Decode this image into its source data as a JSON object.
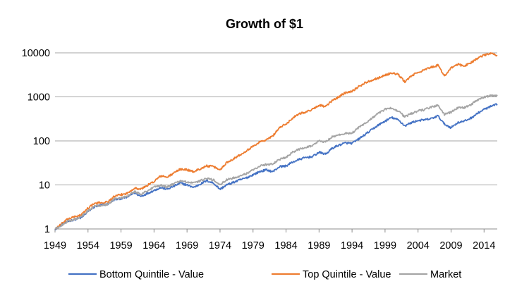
{
  "chart_data": {
    "type": "line",
    "title": "Growth of $1",
    "xlabel": "",
    "ylabel": "",
    "y_scale": "log",
    "ylim": [
      1,
      10000
    ],
    "xlim": [
      1949,
      2016
    ],
    "y_ticks": [
      1,
      10,
      100,
      1000,
      10000
    ],
    "y_tick_labels": [
      "1",
      "10",
      "100",
      "1000",
      "10000"
    ],
    "x_ticks": [
      1949,
      1954,
      1959,
      1964,
      1969,
      1974,
      1979,
      1984,
      1989,
      1994,
      1999,
      2004,
      2009,
      2014
    ],
    "x_tick_labels": [
      "1949",
      "1954",
      "1959",
      "1964",
      "1969",
      "1974",
      "1979",
      "1984",
      "1989",
      "1994",
      "1999",
      "2004",
      "2009",
      "2014"
    ],
    "grid": true,
    "legend_position": "bottom",
    "series": [
      {
        "name": "Bottom Quintile - Value",
        "color": "#4472C4",
        "points": [
          [
            1949,
            1
          ],
          [
            1951,
            1.5
          ],
          [
            1953,
            1.8
          ],
          [
            1954,
            2.5
          ],
          [
            1955,
            3.2
          ],
          [
            1957,
            3.7
          ],
          [
            1958,
            4.6
          ],
          [
            1960,
            5.3
          ],
          [
            1961,
            6.7
          ],
          [
            1962,
            5.5
          ],
          [
            1964,
            7.5
          ],
          [
            1965,
            8.7
          ],
          [
            1966,
            8
          ],
          [
            1968,
            11
          ],
          [
            1969,
            10
          ],
          [
            1970,
            8.8
          ],
          [
            1972,
            12.5
          ],
          [
            1973,
            11
          ],
          [
            1974,
            8
          ],
          [
            1975,
            10
          ],
          [
            1977,
            13
          ],
          [
            1978,
            14.5
          ],
          [
            1980,
            20
          ],
          [
            1981,
            22
          ],
          [
            1982,
            20
          ],
          [
            1983,
            26
          ],
          [
            1984,
            27
          ],
          [
            1985,
            33
          ],
          [
            1986,
            38
          ],
          [
            1987,
            42
          ],
          [
            1988,
            44
          ],
          [
            1989,
            55
          ],
          [
            1990,
            50
          ],
          [
            1991,
            68
          ],
          [
            1992,
            80
          ],
          [
            1993,
            90
          ],
          [
            1994,
            88
          ],
          [
            1995,
            110
          ],
          [
            1996,
            140
          ],
          [
            1997,
            180
          ],
          [
            1998,
            230
          ],
          [
            1999,
            280
          ],
          [
            2000,
            340
          ],
          [
            2001,
            300
          ],
          [
            2002,
            220
          ],
          [
            2003,
            260
          ],
          [
            2004,
            290
          ],
          [
            2005,
            300
          ],
          [
            2006,
            320
          ],
          [
            2007,
            370
          ],
          [
            2008,
            240
          ],
          [
            2009,
            200
          ],
          [
            2010,
            260
          ],
          [
            2011,
            280
          ],
          [
            2012,
            330
          ],
          [
            2013,
            420
          ],
          [
            2014,
            520
          ],
          [
            2015,
            600
          ],
          [
            2016,
            680
          ]
        ]
      },
      {
        "name": "Top Quintile - Value",
        "color": "#ED7D31",
        "points": [
          [
            1949,
            1
          ],
          [
            1951,
            1.7
          ],
          [
            1953,
            2.1
          ],
          [
            1954,
            3
          ],
          [
            1955,
            3.8
          ],
          [
            1957,
            4.1
          ],
          [
            1958,
            5.5
          ],
          [
            1960,
            6.5
          ],
          [
            1961,
            8.5
          ],
          [
            1962,
            8
          ],
          [
            1964,
            12
          ],
          [
            1965,
            16
          ],
          [
            1966,
            15
          ],
          [
            1968,
            23
          ],
          [
            1969,
            22
          ],
          [
            1970,
            20
          ],
          [
            1972,
            27
          ],
          [
            1973,
            26
          ],
          [
            1974,
            22
          ],
          [
            1975,
            32
          ],
          [
            1977,
            48
          ],
          [
            1978,
            60
          ],
          [
            1979,
            75
          ],
          [
            1980,
            95
          ],
          [
            1981,
            105
          ],
          [
            1982,
            130
          ],
          [
            1983,
            200
          ],
          [
            1984,
            240
          ],
          [
            1985,
            330
          ],
          [
            1986,
            420
          ],
          [
            1987,
            450
          ],
          [
            1988,
            520
          ],
          [
            1989,
            650
          ],
          [
            1990,
            600
          ],
          [
            1991,
            820
          ],
          [
            1992,
            1000
          ],
          [
            1993,
            1250
          ],
          [
            1994,
            1350
          ],
          [
            1995,
            1700
          ],
          [
            1996,
            2100
          ],
          [
            1997,
            2400
          ],
          [
            1998,
            2700
          ],
          [
            1999,
            3100
          ],
          [
            2000,
            3500
          ],
          [
            2001,
            3200
          ],
          [
            2002,
            2200
          ],
          [
            2003,
            3000
          ],
          [
            2004,
            3600
          ],
          [
            2005,
            4100
          ],
          [
            2006,
            4700
          ],
          [
            2007,
            5200
          ],
          [
            2008,
            3000
          ],
          [
            2009,
            4500
          ],
          [
            2010,
            5500
          ],
          [
            2011,
            5000
          ],
          [
            2012,
            6000
          ],
          [
            2013,
            7500
          ],
          [
            2014,
            8800
          ],
          [
            2015,
            9800
          ],
          [
            2016,
            8500
          ]
        ]
      },
      {
        "name": "Market",
        "color": "#A5A5A5",
        "points": [
          [
            1949,
            1
          ],
          [
            1951,
            1.5
          ],
          [
            1953,
            1.9
          ],
          [
            1954,
            2.6
          ],
          [
            1955,
            3.3
          ],
          [
            1957,
            3.6
          ],
          [
            1958,
            4.8
          ],
          [
            1960,
            5.6
          ],
          [
            1961,
            7.1
          ],
          [
            1962,
            6.2
          ],
          [
            1964,
            8.8
          ],
          [
            1965,
            10
          ],
          [
            1966,
            9
          ],
          [
            1968,
            12.5
          ],
          [
            1969,
            11.5
          ],
          [
            1970,
            11
          ],
          [
            1972,
            14
          ],
          [
            1973,
            13
          ],
          [
            1974,
            10
          ],
          [
            1975,
            13
          ],
          [
            1977,
            16
          ],
          [
            1978,
            18
          ],
          [
            1980,
            27
          ],
          [
            1981,
            29
          ],
          [
            1982,
            30
          ],
          [
            1983,
            38
          ],
          [
            1984,
            42
          ],
          [
            1985,
            55
          ],
          [
            1986,
            65
          ],
          [
            1987,
            72
          ],
          [
            1988,
            78
          ],
          [
            1989,
            100
          ],
          [
            1990,
            95
          ],
          [
            1991,
            125
          ],
          [
            1992,
            135
          ],
          [
            1993,
            150
          ],
          [
            1994,
            150
          ],
          [
            1995,
            200
          ],
          [
            1996,
            250
          ],
          [
            1997,
            330
          ],
          [
            1998,
            420
          ],
          [
            1999,
            520
          ],
          [
            2000,
            560
          ],
          [
            2001,
            480
          ],
          [
            2002,
            350
          ],
          [
            2003,
            420
          ],
          [
            2004,
            480
          ],
          [
            2005,
            510
          ],
          [
            2006,
            590
          ],
          [
            2007,
            640
          ],
          [
            2008,
            400
          ],
          [
            2009,
            450
          ],
          [
            2010,
            560
          ],
          [
            2011,
            570
          ],
          [
            2012,
            660
          ],
          [
            2013,
            850
          ],
          [
            2014,
            980
          ],
          [
            2015,
            1070
          ],
          [
            2016,
            1050
          ]
        ]
      }
    ]
  }
}
